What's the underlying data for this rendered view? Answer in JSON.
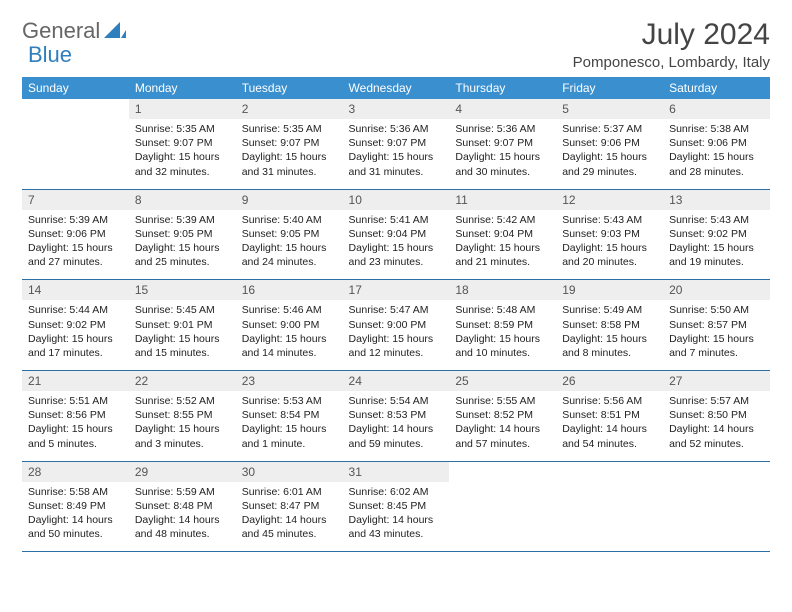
{
  "brand": {
    "part1": "General",
    "part2": "Blue"
  },
  "title": "July 2024",
  "location": "Pomponesco, Lombardy, Italy",
  "colors": {
    "header_bg": "#3a8fce",
    "header_text": "#ffffff",
    "daynum_bg": "#eeeeee",
    "row_divider": "#2b6fa5",
    "brand_gray": "#666666",
    "brand_blue": "#2f7fbf"
  },
  "weekdays": [
    "Sunday",
    "Monday",
    "Tuesday",
    "Wednesday",
    "Thursday",
    "Friday",
    "Saturday"
  ],
  "weeks": [
    {
      "nums": [
        "",
        "1",
        "2",
        "3",
        "4",
        "5",
        "6"
      ],
      "cells": [
        null,
        {
          "sr": "Sunrise: 5:35 AM",
          "ss": "Sunset: 9:07 PM",
          "d1": "Daylight: 15 hours",
          "d2": "and 32 minutes."
        },
        {
          "sr": "Sunrise: 5:35 AM",
          "ss": "Sunset: 9:07 PM",
          "d1": "Daylight: 15 hours",
          "d2": "and 31 minutes."
        },
        {
          "sr": "Sunrise: 5:36 AM",
          "ss": "Sunset: 9:07 PM",
          "d1": "Daylight: 15 hours",
          "d2": "and 31 minutes."
        },
        {
          "sr": "Sunrise: 5:36 AM",
          "ss": "Sunset: 9:07 PM",
          "d1": "Daylight: 15 hours",
          "d2": "and 30 minutes."
        },
        {
          "sr": "Sunrise: 5:37 AM",
          "ss": "Sunset: 9:06 PM",
          "d1": "Daylight: 15 hours",
          "d2": "and 29 minutes."
        },
        {
          "sr": "Sunrise: 5:38 AM",
          "ss": "Sunset: 9:06 PM",
          "d1": "Daylight: 15 hours",
          "d2": "and 28 minutes."
        }
      ]
    },
    {
      "nums": [
        "7",
        "8",
        "9",
        "10",
        "11",
        "12",
        "13"
      ],
      "cells": [
        {
          "sr": "Sunrise: 5:39 AM",
          "ss": "Sunset: 9:06 PM",
          "d1": "Daylight: 15 hours",
          "d2": "and 27 minutes."
        },
        {
          "sr": "Sunrise: 5:39 AM",
          "ss": "Sunset: 9:05 PM",
          "d1": "Daylight: 15 hours",
          "d2": "and 25 minutes."
        },
        {
          "sr": "Sunrise: 5:40 AM",
          "ss": "Sunset: 9:05 PM",
          "d1": "Daylight: 15 hours",
          "d2": "and 24 minutes."
        },
        {
          "sr": "Sunrise: 5:41 AM",
          "ss": "Sunset: 9:04 PM",
          "d1": "Daylight: 15 hours",
          "d2": "and 23 minutes."
        },
        {
          "sr": "Sunrise: 5:42 AM",
          "ss": "Sunset: 9:04 PM",
          "d1": "Daylight: 15 hours",
          "d2": "and 21 minutes."
        },
        {
          "sr": "Sunrise: 5:43 AM",
          "ss": "Sunset: 9:03 PM",
          "d1": "Daylight: 15 hours",
          "d2": "and 20 minutes."
        },
        {
          "sr": "Sunrise: 5:43 AM",
          "ss": "Sunset: 9:02 PM",
          "d1": "Daylight: 15 hours",
          "d2": "and 19 minutes."
        }
      ]
    },
    {
      "nums": [
        "14",
        "15",
        "16",
        "17",
        "18",
        "19",
        "20"
      ],
      "cells": [
        {
          "sr": "Sunrise: 5:44 AM",
          "ss": "Sunset: 9:02 PM",
          "d1": "Daylight: 15 hours",
          "d2": "and 17 minutes."
        },
        {
          "sr": "Sunrise: 5:45 AM",
          "ss": "Sunset: 9:01 PM",
          "d1": "Daylight: 15 hours",
          "d2": "and 15 minutes."
        },
        {
          "sr": "Sunrise: 5:46 AM",
          "ss": "Sunset: 9:00 PM",
          "d1": "Daylight: 15 hours",
          "d2": "and 14 minutes."
        },
        {
          "sr": "Sunrise: 5:47 AM",
          "ss": "Sunset: 9:00 PM",
          "d1": "Daylight: 15 hours",
          "d2": "and 12 minutes."
        },
        {
          "sr": "Sunrise: 5:48 AM",
          "ss": "Sunset: 8:59 PM",
          "d1": "Daylight: 15 hours",
          "d2": "and 10 minutes."
        },
        {
          "sr": "Sunrise: 5:49 AM",
          "ss": "Sunset: 8:58 PM",
          "d1": "Daylight: 15 hours",
          "d2": "and 8 minutes."
        },
        {
          "sr": "Sunrise: 5:50 AM",
          "ss": "Sunset: 8:57 PM",
          "d1": "Daylight: 15 hours",
          "d2": "and 7 minutes."
        }
      ]
    },
    {
      "nums": [
        "21",
        "22",
        "23",
        "24",
        "25",
        "26",
        "27"
      ],
      "cells": [
        {
          "sr": "Sunrise: 5:51 AM",
          "ss": "Sunset: 8:56 PM",
          "d1": "Daylight: 15 hours",
          "d2": "and 5 minutes."
        },
        {
          "sr": "Sunrise: 5:52 AM",
          "ss": "Sunset: 8:55 PM",
          "d1": "Daylight: 15 hours",
          "d2": "and 3 minutes."
        },
        {
          "sr": "Sunrise: 5:53 AM",
          "ss": "Sunset: 8:54 PM",
          "d1": "Daylight: 15 hours",
          "d2": "and 1 minute."
        },
        {
          "sr": "Sunrise: 5:54 AM",
          "ss": "Sunset: 8:53 PM",
          "d1": "Daylight: 14 hours",
          "d2": "and 59 minutes."
        },
        {
          "sr": "Sunrise: 5:55 AM",
          "ss": "Sunset: 8:52 PM",
          "d1": "Daylight: 14 hours",
          "d2": "and 57 minutes."
        },
        {
          "sr": "Sunrise: 5:56 AM",
          "ss": "Sunset: 8:51 PM",
          "d1": "Daylight: 14 hours",
          "d2": "and 54 minutes."
        },
        {
          "sr": "Sunrise: 5:57 AM",
          "ss": "Sunset: 8:50 PM",
          "d1": "Daylight: 14 hours",
          "d2": "and 52 minutes."
        }
      ]
    },
    {
      "nums": [
        "28",
        "29",
        "30",
        "31",
        "",
        "",
        ""
      ],
      "cells": [
        {
          "sr": "Sunrise: 5:58 AM",
          "ss": "Sunset: 8:49 PM",
          "d1": "Daylight: 14 hours",
          "d2": "and 50 minutes."
        },
        {
          "sr": "Sunrise: 5:59 AM",
          "ss": "Sunset: 8:48 PM",
          "d1": "Daylight: 14 hours",
          "d2": "and 48 minutes."
        },
        {
          "sr": "Sunrise: 6:01 AM",
          "ss": "Sunset: 8:47 PM",
          "d1": "Daylight: 14 hours",
          "d2": "and 45 minutes."
        },
        {
          "sr": "Sunrise: 6:02 AM",
          "ss": "Sunset: 8:45 PM",
          "d1": "Daylight: 14 hours",
          "d2": "and 43 minutes."
        },
        null,
        null,
        null
      ]
    }
  ]
}
